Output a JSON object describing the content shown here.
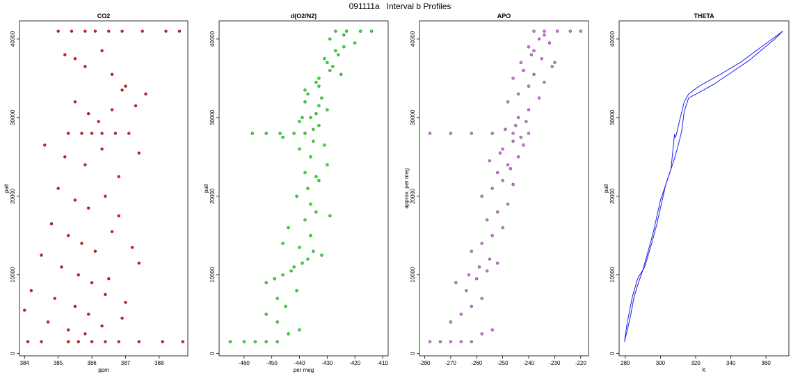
{
  "title": "091111a   Interval b Profiles",
  "chart_data": [
    {
      "type": "scatter",
      "title": "CO2",
      "xlabel": "ppm",
      "ylabel": "palt",
      "xlim": [
        383.85,
        388.85
      ],
      "ylim": [
        -300,
        42300
      ],
      "xticks": [
        384,
        385,
        386,
        387,
        388
      ],
      "yticks": [
        0,
        10000,
        20000,
        30000,
        40000
      ],
      "color": "#ee1111",
      "series": [
        {
          "name": "",
          "x": [
            384.1,
            384.5,
            385.3,
            385.6,
            386.0,
            386.4,
            386.8,
            387.4,
            388.1,
            388.7,
            385.0,
            385.4,
            385.8,
            386.1,
            386.5,
            386.9,
            387.5,
            388.2,
            388.6,
            385.2,
            385.5,
            385.8,
            386.3,
            386.6,
            387.0,
            387.6,
            385.5,
            385.9,
            386.2,
            386.6,
            386.9,
            387.3,
            385.3,
            385.7,
            386.0,
            386.3,
            386.7,
            387.1,
            384.6,
            385.2,
            385.8,
            386.3,
            386.8,
            387.4,
            385.0,
            385.5,
            385.9,
            386.4,
            386.8,
            384.8,
            385.3,
            385.7,
            386.1,
            386.6,
            387.2,
            384.5,
            385.1,
            385.6,
            386.0,
            386.5,
            387.4,
            384.2,
            384.9,
            385.5,
            385.9,
            386.4,
            387.0,
            384.0,
            384.7,
            385.3,
            385.8,
            386.3,
            386.9
          ],
          "y": [
            1500,
            1500,
            1500,
            1500,
            1500,
            1500,
            1500,
            1500,
            1500,
            1500,
            41000,
            41000,
            41000,
            41000,
            41000,
            41000,
            41000,
            41000,
            41000,
            38000,
            37500,
            36500,
            38500,
            35500,
            34000,
            33000,
            32000,
            30500,
            29500,
            31000,
            33500,
            31500,
            28000,
            28000,
            28000,
            28000,
            28000,
            28000,
            26500,
            25000,
            24000,
            26000,
            22500,
            25500,
            21000,
            19500,
            18500,
            20000,
            17500,
            16500,
            15000,
            14000,
            13000,
            15500,
            13500,
            12500,
            11000,
            10000,
            9000,
            9500,
            11500,
            8000,
            7000,
            6000,
            5000,
            7500,
            6500,
            5500,
            4000,
            3000,
            2500,
            3500,
            4500
          ]
        }
      ]
    },
    {
      "type": "scatter",
      "title": "d(O2/N2)",
      "xlabel": "per meg",
      "ylabel": "palt",
      "xlim": [
        -469,
        -408
      ],
      "ylim": [
        -300,
        42300
      ],
      "xticks": [
        -460,
        -450,
        -440,
        -430,
        -420,
        -410
      ],
      "yticks": [
        0,
        10000,
        20000,
        30000,
        40000
      ],
      "color": "#22ee22",
      "series": [
        {
          "name": "",
          "x": [
            -465,
            -460,
            -456,
            -452,
            -448,
            -444,
            -440,
            -448,
            -452,
            -445,
            -448,
            -441,
            -452,
            -446,
            -442,
            -437,
            -449,
            -443,
            -439,
            -435,
            -446,
            -440,
            -436,
            -432,
            -444,
            -438,
            -434,
            -429,
            -436,
            -441,
            -437,
            -433,
            -438,
            -434,
            -430,
            -436,
            -440,
            -435,
            -431,
            -446,
            -438,
            -433,
            -435,
            -439,
            -434,
            -430,
            -438,
            -433,
            -457,
            -452,
            -447,
            -442,
            -438,
            -440,
            -436,
            -432,
            -437,
            -433,
            -438,
            -434,
            -433,
            -429,
            -430,
            -426,
            -431,
            -427,
            -424,
            -428,
            -425,
            -420,
            -429,
            -424,
            -427,
            -423,
            -418,
            -414
          ],
          "y": [
            1500,
            1500,
            1500,
            1500,
            1500,
            2500,
            3000,
            4000,
            5000,
            6000,
            7000,
            8000,
            9000,
            10000,
            11000,
            12000,
            9500,
            10500,
            11500,
            13000,
            14000,
            13500,
            15000,
            12500,
            16000,
            17000,
            18000,
            17500,
            19000,
            20000,
            21000,
            22000,
            23000,
            22500,
            24000,
            25000,
            26000,
            27000,
            26500,
            27500,
            28000,
            29000,
            28500,
            30000,
            30500,
            31000,
            32000,
            31500,
            28000,
            28000,
            28000,
            28000,
            28000,
            29500,
            30000,
            32500,
            33000,
            34000,
            33500,
            34500,
            35000,
            36000,
            37000,
            38000,
            37500,
            38500,
            39000,
            36500,
            35500,
            39500,
            40000,
            40500,
            41000,
            41000,
            41000,
            41000
          ]
        }
      ]
    },
    {
      "type": "scatter",
      "title": "APO",
      "xlabel": "",
      "ylabel": "approx. per meg",
      "xlim": [
        -282,
        -217
      ],
      "ylim": [
        -300,
        42300
      ],
      "xticks": [
        -280,
        -270,
        -260,
        -250,
        -240,
        -230,
        -220
      ],
      "yticks": [
        0,
        10000,
        20000,
        30000,
        40000
      ],
      "color": "#dd66ee",
      "series": [
        {
          "name": "",
          "x": [
            -278,
            -274,
            -270,
            -266,
            -262,
            -258,
            -254,
            -270,
            -266,
            -262,
            -258,
            -264,
            -268,
            -263,
            -259,
            -255,
            -260,
            -256,
            -252,
            -262,
            -258,
            -254,
            -250,
            -256,
            -252,
            -248,
            -258,
            -254,
            -250,
            -246,
            -252,
            -248,
            -244,
            -250,
            -246,
            -242,
            -255,
            -251,
            -247,
            -243,
            -249,
            -245,
            -241,
            -244,
            -240,
            -278,
            -270,
            -262,
            -254,
            -246,
            -240,
            -248,
            -244,
            -240,
            -236,
            -246,
            -242,
            -238,
            -234,
            -243,
            -239,
            -235,
            -231,
            -240,
            -236,
            -232,
            -238,
            -234,
            -230,
            -238,
            -234,
            -229,
            -224,
            -220
          ],
          "y": [
            1500,
            1500,
            1500,
            1500,
            1500,
            2500,
            3000,
            4000,
            5000,
            6000,
            7000,
            8000,
            9000,
            10000,
            11000,
            12000,
            9500,
            10500,
            11500,
            13000,
            14000,
            15000,
            16000,
            17000,
            18000,
            19000,
            20000,
            21000,
            22000,
            21500,
            23000,
            24000,
            25000,
            26000,
            27000,
            26500,
            24500,
            25500,
            23500,
            27500,
            28500,
            29000,
            29500,
            30000,
            31000,
            28000,
            28000,
            28000,
            28000,
            28000,
            28000,
            32000,
            33000,
            34000,
            32500,
            35000,
            36000,
            35500,
            34500,
            37000,
            38000,
            37500,
            36500,
            39000,
            40000,
            39500,
            38500,
            40500,
            37000,
            41000,
            41000,
            41000,
            41000,
            41000
          ]
        }
      ]
    },
    {
      "type": "line",
      "title": "THETA",
      "xlabel": "K",
      "ylabel": "palt",
      "xlim": [
        276.5,
        373
      ],
      "ylim": [
        -300,
        42300
      ],
      "xticks": [
        280,
        300,
        320,
        340,
        360
      ],
      "yticks": [
        0,
        10000,
        20000,
        30000,
        40000
      ],
      "color": "#1a1aee",
      "series": [
        {
          "name": "",
          "x": [
            279.5,
            281,
            283,
            285,
            287.5,
            290,
            293,
            296,
            298,
            300,
            302,
            305,
            308,
            310,
            312,
            313.5,
            316,
            322,
            330,
            340,
            350,
            358,
            365,
            369.5,
            366,
            358,
            346,
            334,
            322,
            316,
            313.5,
            311.5,
            310,
            309,
            308.3,
            308,
            306,
            303,
            300,
            298,
            295,
            291,
            287,
            284,
            282.5,
            281,
            279.7
          ],
          "y": [
            1500,
            2800,
            4800,
            7200,
            9000,
            10600,
            13000,
            15500,
            17500,
            19500,
            20800,
            22800,
            24800,
            26400,
            28200,
            30800,
            32500,
            33200,
            34200,
            35700,
            37200,
            38700,
            40000,
            41000,
            40400,
            39100,
            37100,
            35500,
            34000,
            33000,
            32000,
            30200,
            28800,
            27800,
            27500,
            27900,
            23500,
            21500,
            18500,
            16500,
            14000,
            11000,
            9500,
            7200,
            5500,
            3800,
            1800
          ]
        }
      ]
    }
  ]
}
